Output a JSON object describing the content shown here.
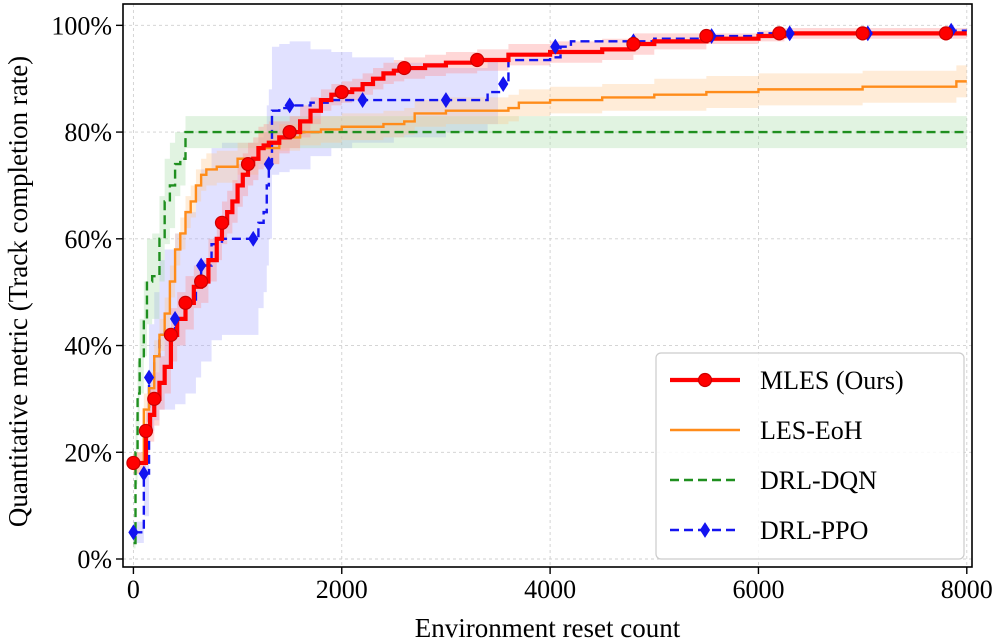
{
  "chart_data": {
    "type": "line",
    "title": "",
    "xlabel": "Environment reset count",
    "ylabel": "Quantitative metric (Track completion rate)",
    "xlim": [
      -100,
      8050
    ],
    "ylim": [
      -1.5,
      104
    ],
    "x_ticks": [
      0,
      2000,
      4000,
      6000,
      8000
    ],
    "y_ticks": [
      0,
      20,
      40,
      60,
      80,
      100
    ],
    "x_tick_labels": [
      "0",
      "2000",
      "4000",
      "6000",
      "8000"
    ],
    "y_tick_labels": [
      "0%",
      "20%",
      "40%",
      "60%",
      "80%",
      "100%"
    ],
    "grid": true,
    "legend_position": "bottom-right",
    "series": [
      {
        "name": "MLES (Ours)",
        "color": "#ff0000",
        "band_color": "#ff8c8c",
        "line_style": "solid",
        "marker": "circle",
        "x": [
          0,
          80,
          120,
          160,
          200,
          250,
          300,
          360,
          420,
          500,
          580,
          650,
          720,
          800,
          850,
          900,
          950,
          1000,
          1050,
          1100,
          1150,
          1200,
          1250,
          1300,
          1400,
          1500,
          1600,
          1700,
          1800,
          1900,
          2000,
          2100,
          2200,
          2300,
          2400,
          2500,
          2600,
          2800,
          3000,
          3300,
          3600,
          4000,
          4500,
          4800,
          5000,
          5500,
          6000,
          6250,
          6500,
          7000,
          7500,
          7800,
          8000
        ],
        "y": [
          18,
          18,
          24,
          27,
          30,
          33,
          36,
          42,
          45,
          48,
          51,
          52,
          56,
          60,
          63,
          65,
          67,
          70,
          72,
          74,
          75,
          77,
          77.5,
          78,
          79,
          80,
          82,
          84,
          86,
          87,
          87.5,
          88,
          89,
          90,
          91,
          91.5,
          92,
          92.5,
          93,
          93.5,
          94.5,
          95,
          95.5,
          96.5,
          97,
          97.5,
          98,
          98.5,
          98.5,
          98.5,
          98.5,
          98.5,
          98.5
        ],
        "band": [
          2,
          2,
          4,
          5,
          5,
          5,
          5,
          5,
          5,
          5,
          4,
          4,
          4,
          4,
          4,
          4,
          4,
          4,
          4,
          4,
          4,
          4,
          4,
          4,
          3,
          3,
          3,
          2.5,
          2,
          2,
          2,
          2,
          2,
          2,
          2,
          2,
          2,
          2,
          2,
          2,
          2,
          2,
          2,
          2,
          1.5,
          1,
          1,
          1,
          1,
          1,
          1,
          1,
          1
        ],
        "marker_x": [
          0,
          120,
          200,
          360,
          500,
          650,
          850,
          1100,
          1500,
          2000,
          2600,
          3300,
          4800,
          5500,
          6200,
          7000,
          7800
        ],
        "marker_y": [
          18,
          24,
          30,
          42,
          48,
          52,
          63,
          74,
          80,
          87.5,
          92,
          93.5,
          96.5,
          98,
          98.5,
          98.5,
          98.5
        ]
      },
      {
        "name": "LES-EoH",
        "color": "#ff8c1a",
        "band_color": "#ffc890",
        "line_style": "solid",
        "marker": "none",
        "x": [
          0,
          60,
          100,
          150,
          200,
          250,
          300,
          350,
          400,
          450,
          500,
          550,
          600,
          650,
          700,
          800,
          1000,
          1200,
          1400,
          1600,
          1800,
          2000,
          2400,
          2600,
          2700,
          3000,
          3600,
          3700,
          4000,
          4500,
          5000,
          5500,
          6000,
          6500,
          7000,
          7500,
          7900,
          8000
        ],
        "y": [
          18,
          18,
          28,
          32,
          38,
          42,
          46,
          52,
          58,
          61,
          65,
          67,
          70,
          72,
          73,
          73.5,
          75,
          77,
          79,
          80,
          80.5,
          81,
          81.5,
          82,
          83.5,
          84,
          84.5,
          85.5,
          86,
          86.5,
          87,
          87.5,
          88,
          88,
          88.5,
          88.5,
          89.5,
          89.5
        ],
        "band": [
          2,
          2,
          3,
          3,
          3,
          3,
          3,
          3,
          3,
          3,
          3,
          3,
          3,
          3,
          3,
          3,
          3,
          3,
          2.5,
          2.5,
          2.5,
          2.5,
          2.5,
          2.5,
          2.5,
          2.5,
          2.5,
          2.5,
          2.5,
          2.5,
          3,
          3,
          3,
          3,
          3,
          3,
          3,
          3
        ]
      },
      {
        "name": "DRL-DQN",
        "color": "#1f8f1f",
        "band_color": "#a8dca8",
        "line_style": "dashed",
        "marker": "none",
        "x": [
          0,
          20,
          40,
          60,
          100,
          130,
          180,
          250,
          300,
          350,
          400,
          450,
          500,
          8000
        ],
        "y": [
          3,
          20,
          31,
          38,
          45,
          52,
          53,
          60,
          67,
          70,
          74,
          75,
          80,
          80
        ],
        "band": [
          1,
          6,
          6,
          7,
          7,
          8,
          8,
          8,
          8,
          8,
          6,
          5,
          3,
          3
        ]
      },
      {
        "name": "DRL-PPO",
        "color": "#1414f0",
        "band_color": "#aaaaff",
        "line_style": "dashed",
        "marker": "diamond",
        "x": [
          0,
          100,
          150,
          200,
          250,
          300,
          400,
          500,
          600,
          650,
          750,
          850,
          1000,
          1100,
          1200,
          1250,
          1280,
          1300,
          1330,
          1400,
          1500,
          1700,
          1900,
          2100,
          2500,
          3000,
          3400,
          3550,
          3600,
          4000,
          4100,
          4200,
          4500,
          5000,
          5500,
          6000,
          6500,
          7000,
          7800,
          8000
        ],
        "y": [
          5,
          16,
          34,
          38,
          42,
          43,
          45,
          48,
          52,
          55,
          59,
          60,
          60,
          60,
          63,
          65,
          70,
          74,
          84,
          84.5,
          85,
          85.5,
          86,
          86,
          86,
          86,
          87.5,
          89,
          93.5,
          94,
          96,
          97,
          97,
          97.5,
          98,
          98.5,
          98.5,
          98.5,
          99,
          99
        ],
        "band": [
          2,
          8,
          10,
          12,
          14,
          15,
          16,
          17,
          18,
          18,
          18,
          18,
          18,
          18,
          16,
          15,
          15,
          14,
          12,
          12,
          12,
          10,
          9,
          8,
          7,
          6,
          6,
          5,
          4,
          3,
          2.5,
          2,
          2,
          2,
          1.5,
          1,
          1,
          1,
          1,
          1
        ],
        "band_until": 3500,
        "marker_x": [
          0,
          100,
          150,
          400,
          650,
          1150,
          1300,
          1500,
          2200,
          3000,
          3550,
          4050,
          4800,
          5550,
          6300,
          7050,
          7850
        ],
        "marker_y": [
          5,
          16,
          34,
          45,
          55,
          60,
          74,
          85,
          86,
          86,
          89,
          96,
          97,
          98,
          98.5,
          98.5,
          99
        ]
      }
    ]
  }
}
